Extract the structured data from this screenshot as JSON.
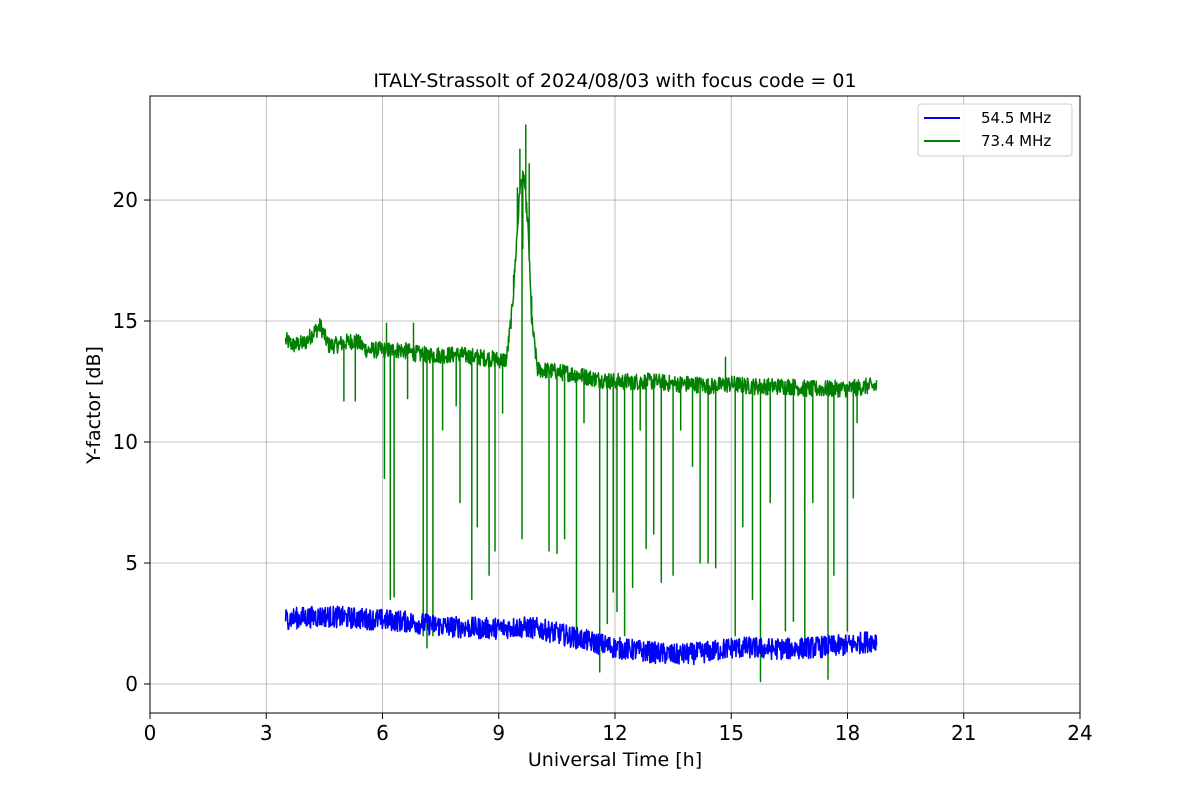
{
  "chart_data": {
    "type": "line",
    "title": "ITALY-Strassolt of 2024/08/03 with focus code = 01",
    "xlabel": "Universal Time [h]",
    "ylabel": "Y-factor [dB]",
    "xlim": [
      0,
      24
    ],
    "ylim": [
      -1.2,
      24.3
    ],
    "xticks": [
      0,
      3,
      6,
      9,
      12,
      15,
      18,
      21,
      24
    ],
    "xtick_labels": [
      "0",
      "3",
      "6",
      "9",
      "12",
      "15",
      "18",
      "21",
      "24"
    ],
    "yticks": [
      0,
      5,
      10,
      15,
      20
    ],
    "ytick_labels": [
      "0",
      "5",
      "10",
      "15",
      "20"
    ],
    "grid": true,
    "legend_position": "upper right",
    "series": [
      {
        "name": "54.5 MHz",
        "color": "#0000ff",
        "noise_amplitude": 0.45,
        "x": [
          3.5,
          4.0,
          4.5,
          5.0,
          5.5,
          6.0,
          6.5,
          7.0,
          7.5,
          8.0,
          8.5,
          9.0,
          9.5,
          10.0,
          10.5,
          11.0,
          11.5,
          12.0,
          12.5,
          13.0,
          13.5,
          14.0,
          14.5,
          15.0,
          15.5,
          16.0,
          16.5,
          17.0,
          17.5,
          18.0,
          18.5,
          18.75
        ],
        "y": [
          2.7,
          2.75,
          2.8,
          2.75,
          2.7,
          2.65,
          2.6,
          2.5,
          2.4,
          2.35,
          2.3,
          2.3,
          2.35,
          2.3,
          2.1,
          1.9,
          1.7,
          1.5,
          1.4,
          1.3,
          1.2,
          1.25,
          1.35,
          1.5,
          1.5,
          1.45,
          1.45,
          1.5,
          1.55,
          1.6,
          1.75,
          1.8
        ]
      },
      {
        "name": "73.4 MHz",
        "color": "#008000",
        "noise_amplitude": 0.35,
        "x": [
          3.5,
          3.7,
          4.0,
          4.2,
          4.4,
          4.6,
          4.8,
          5.0,
          5.3,
          5.6,
          6.0,
          6.5,
          7.0,
          7.5,
          8.0,
          8.5,
          9.0,
          9.2,
          9.35,
          9.45,
          9.55,
          9.65,
          9.75,
          9.85,
          10.0,
          10.5,
          11.0,
          11.5,
          12.0,
          12.5,
          13.0,
          13.5,
          14.0,
          14.5,
          15.0,
          15.5,
          16.0,
          16.5,
          17.0,
          17.5,
          18.0,
          18.5,
          18.75
        ],
        "y": [
          14.2,
          14.0,
          14.1,
          14.5,
          14.8,
          14.0,
          14.0,
          14.1,
          14.2,
          13.8,
          13.8,
          13.8,
          13.6,
          13.6,
          13.6,
          13.5,
          13.4,
          13.4,
          15.5,
          18.0,
          20.5,
          21.0,
          19.0,
          15.0,
          13.0,
          12.9,
          12.8,
          12.6,
          12.5,
          12.5,
          12.5,
          12.4,
          12.4,
          12.3,
          12.4,
          12.3,
          12.3,
          12.3,
          12.2,
          12.2,
          12.2,
          12.3,
          12.3
        ],
        "dips": [
          [
            5.0,
            11.7
          ],
          [
            5.3,
            11.7
          ],
          [
            6.05,
            8.5
          ],
          [
            6.2,
            3.5
          ],
          [
            6.3,
            3.6
          ],
          [
            6.65,
            11.8
          ],
          [
            6.8,
            12.0
          ],
          [
            7.05,
            2.0
          ],
          [
            7.15,
            1.5
          ],
          [
            7.3,
            2.0
          ],
          [
            7.55,
            10.5
          ],
          [
            7.9,
            11.5
          ],
          [
            8.0,
            7.5
          ],
          [
            8.3,
            3.5
          ],
          [
            8.45,
            6.5
          ],
          [
            8.75,
            4.5
          ],
          [
            8.9,
            5.5
          ],
          [
            9.1,
            11.2
          ],
          [
            9.6,
            6.0
          ],
          [
            9.7,
            7.5
          ],
          [
            10.3,
            5.5
          ],
          [
            10.5,
            5.4
          ],
          [
            10.7,
            6.0
          ],
          [
            11.0,
            1.8
          ],
          [
            11.2,
            10.8
          ],
          [
            11.6,
            0.5
          ],
          [
            11.8,
            2.5
          ],
          [
            11.95,
            3.8
          ],
          [
            12.05,
            3.0
          ],
          [
            12.25,
            2.0
          ],
          [
            12.45,
            4.0
          ],
          [
            12.65,
            10.5
          ],
          [
            12.8,
            5.6
          ],
          [
            13.0,
            6.2
          ],
          [
            13.2,
            4.2
          ],
          [
            13.5,
            4.5
          ],
          [
            13.7,
            10.5
          ],
          [
            14.0,
            9.0
          ],
          [
            14.2,
            5.0
          ],
          [
            14.4,
            5.0
          ],
          [
            14.6,
            4.8
          ],
          [
            14.85,
            0.8
          ],
          [
            15.1,
            2.0
          ],
          [
            15.3,
            6.5
          ],
          [
            15.55,
            3.5
          ],
          [
            15.75,
            0.1
          ],
          [
            16.0,
            7.5
          ],
          [
            16.4,
            2.2
          ],
          [
            16.6,
            2.6
          ],
          [
            16.9,
            1.5
          ],
          [
            17.1,
            7.5
          ],
          [
            17.5,
            0.2
          ],
          [
            17.65,
            4.5
          ],
          [
            18.0,
            2.2
          ],
          [
            18.15,
            7.7
          ],
          [
            18.25,
            10.8
          ]
        ],
        "spikes": [
          [
            6.1,
            14.9
          ],
          [
            6.8,
            14.9
          ],
          [
            9.38,
            16.9
          ],
          [
            9.48,
            20.5
          ],
          [
            9.55,
            22.1
          ],
          [
            9.62,
            18.0
          ],
          [
            9.7,
            23.1
          ],
          [
            9.78,
            21.5
          ],
          [
            9.85,
            16.0
          ],
          [
            14.85,
            13.5
          ]
        ]
      }
    ]
  }
}
